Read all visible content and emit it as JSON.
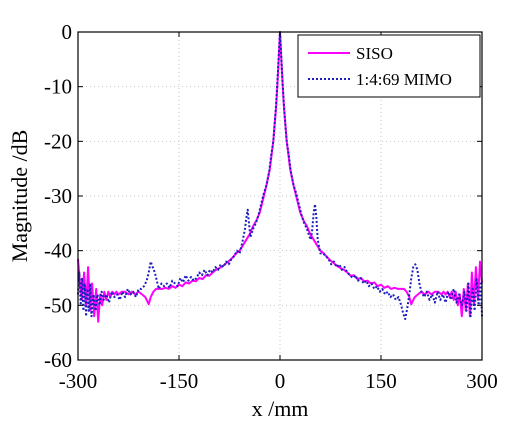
{
  "chart_data": {
    "type": "line",
    "title": "",
    "xlabel": "x /mm",
    "ylabel": "Magnitude /dB",
    "xlim": [
      -300,
      300
    ],
    "ylim": [
      -60,
      0
    ],
    "xticks": [
      -300,
      -150,
      0,
      150,
      300
    ],
    "yticks": [
      0,
      -10,
      -20,
      -30,
      -40,
      -50,
      -60
    ],
    "grid": true,
    "legend_position": "top-right",
    "series": [
      {
        "name": "SISO",
        "color": "#ff00ff",
        "line_style": "solid",
        "points": [
          [
            -300,
            -41.5
          ],
          [
            -297,
            -46
          ],
          [
            -294,
            -49
          ],
          [
            -291,
            -44
          ],
          [
            -288,
            -50
          ],
          [
            -285,
            -43
          ],
          [
            -282,
            -51
          ],
          [
            -279,
            -46
          ],
          [
            -276,
            -52
          ],
          [
            -273,
            -47
          ],
          [
            -270,
            -53
          ],
          [
            -267,
            -48
          ],
          [
            -264,
            -50
          ],
          [
            -261,
            -47.5
          ],
          [
            -258,
            -49
          ],
          [
            -255,
            -47.5
          ],
          [
            -252,
            -48.5
          ],
          [
            -249,
            -47.5
          ],
          [
            -246,
            -48
          ],
          [
            -243,
            -47.5
          ],
          [
            -240,
            -48
          ],
          [
            -235,
            -47.5
          ],
          [
            -230,
            -47.5
          ],
          [
            -225,
            -48
          ],
          [
            -220,
            -47.5
          ],
          [
            -215,
            -48
          ],
          [
            -210,
            -47.5
          ],
          [
            -205,
            -48
          ],
          [
            -200,
            -48.5
          ],
          [
            -195,
            -49.8
          ],
          [
            -192,
            -48.5
          ],
          [
            -188,
            -47.5
          ],
          [
            -184,
            -47
          ],
          [
            -180,
            -47
          ],
          [
            -175,
            -47
          ],
          [
            -170,
            -46.8
          ],
          [
            -165,
            -47
          ],
          [
            -160,
            -46.5
          ],
          [
            -155,
            -46.8
          ],
          [
            -150,
            -46.2
          ],
          [
            -145,
            -46.5
          ],
          [
            -140,
            -45.8
          ],
          [
            -135,
            -46
          ],
          [
            -130,
            -45.5
          ],
          [
            -125,
            -45.6
          ],
          [
            -120,
            -45
          ],
          [
            -115,
            -45.2
          ],
          [
            -110,
            -44.5
          ],
          [
            -105,
            -44.6
          ],
          [
            -100,
            -44
          ],
          [
            -95,
            -43.5
          ],
          [
            -90,
            -43.2
          ],
          [
            -85,
            -42.8
          ],
          [
            -80,
            -42.3
          ],
          [
            -75,
            -41.8
          ],
          [
            -70,
            -41.2
          ],
          [
            -65,
            -40.5
          ],
          [
            -60,
            -40
          ],
          [
            -55,
            -39
          ],
          [
            -50,
            -38
          ],
          [
            -45,
            -37
          ],
          [
            -40,
            -35.5
          ],
          [
            -35,
            -34.5
          ],
          [
            -30,
            -33
          ],
          [
            -25,
            -30.5
          ],
          [
            -20,
            -28
          ],
          [
            -15,
            -25
          ],
          [
            -12,
            -22
          ],
          [
            -10,
            -20
          ],
          [
            -8,
            -17
          ],
          [
            -6,
            -14
          ],
          [
            -4,
            -10
          ],
          [
            -2,
            -5
          ],
          [
            0,
            0
          ],
          [
            2,
            -5
          ],
          [
            4,
            -10
          ],
          [
            6,
            -14
          ],
          [
            8,
            -17
          ],
          [
            10,
            -20
          ],
          [
            12,
            -22
          ],
          [
            15,
            -25
          ],
          [
            20,
            -28
          ],
          [
            25,
            -30.5
          ],
          [
            30,
            -33
          ],
          [
            35,
            -34.5
          ],
          [
            40,
            -35.5
          ],
          [
            45,
            -37
          ],
          [
            50,
            -38
          ],
          [
            55,
            -39
          ],
          [
            60,
            -40
          ],
          [
            65,
            -40.5
          ],
          [
            70,
            -41.2
          ],
          [
            75,
            -41.8
          ],
          [
            80,
            -42.3
          ],
          [
            85,
            -42.8
          ],
          [
            90,
            -43.2
          ],
          [
            95,
            -43.5
          ],
          [
            100,
            -44
          ],
          [
            105,
            -44.6
          ],
          [
            110,
            -44.5
          ],
          [
            115,
            -45.2
          ],
          [
            120,
            -45
          ],
          [
            125,
            -45.6
          ],
          [
            130,
            -45.5
          ],
          [
            135,
            -46
          ],
          [
            140,
            -45.8
          ],
          [
            145,
            -46.5
          ],
          [
            150,
            -46.2
          ],
          [
            155,
            -46.8
          ],
          [
            160,
            -46.5
          ],
          [
            165,
            -47
          ],
          [
            170,
            -46.8
          ],
          [
            175,
            -47
          ],
          [
            180,
            -47
          ],
          [
            184,
            -47
          ],
          [
            188,
            -47.5
          ],
          [
            192,
            -48.5
          ],
          [
            195,
            -49.8
          ],
          [
            200,
            -48.5
          ],
          [
            205,
            -48
          ],
          [
            210,
            -47.5
          ],
          [
            215,
            -48
          ],
          [
            220,
            -47.5
          ],
          [
            225,
            -48
          ],
          [
            230,
            -47.5
          ],
          [
            235,
            -47.5
          ],
          [
            240,
            -48
          ],
          [
            243,
            -47.5
          ],
          [
            246,
            -48
          ],
          [
            249,
            -47.5
          ],
          [
            252,
            -48.5
          ],
          [
            255,
            -47.5
          ],
          [
            258,
            -49
          ],
          [
            261,
            -47.5
          ],
          [
            264,
            -50
          ],
          [
            267,
            -48
          ],
          [
            270,
            -52
          ],
          [
            273,
            -47
          ],
          [
            276,
            -51
          ],
          [
            279,
            -46
          ],
          [
            282,
            -52
          ],
          [
            285,
            -44
          ],
          [
            288,
            -50
          ],
          [
            291,
            -43
          ],
          [
            294,
            -49
          ],
          [
            297,
            -42
          ],
          [
            300,
            -46
          ]
        ]
      },
      {
        "name": "1:4:69 MIMO",
        "color": "#1f1fbf",
        "line_style": "dotted",
        "points": [
          [
            -300,
            -48
          ],
          [
            -298,
            -44
          ],
          [
            -296,
            -50
          ],
          [
            -294,
            -45
          ],
          [
            -292,
            -51
          ],
          [
            -290,
            -46
          ],
          [
            -288,
            -52
          ],
          [
            -286,
            -47
          ],
          [
            -284,
            -51
          ],
          [
            -282,
            -46
          ],
          [
            -280,
            -52
          ],
          [
            -277,
            -48
          ],
          [
            -274,
            -51
          ],
          [
            -271,
            -48
          ],
          [
            -268,
            -50
          ],
          [
            -265,
            -47.5
          ],
          [
            -262,
            -49
          ],
          [
            -258,
            -48
          ],
          [
            -254,
            -49.5
          ],
          [
            -250,
            -47.5
          ],
          [
            -246,
            -48.5
          ],
          [
            -242,
            -48
          ],
          [
            -238,
            -49
          ],
          [
            -234,
            -47.5
          ],
          [
            -230,
            -48.5
          ],
          [
            -226,
            -47
          ],
          [
            -222,
            -48
          ],
          [
            -218,
            -47.5
          ],
          [
            -214,
            -48.5
          ],
          [
            -210,
            -47
          ],
          [
            -206,
            -47
          ],
          [
            -202,
            -46.5
          ],
          [
            -198,
            -45.5
          ],
          [
            -195,
            -44
          ],
          [
            -192,
            -42
          ],
          [
            -189,
            -43
          ],
          [
            -186,
            -44
          ],
          [
            -183,
            -45.5
          ],
          [
            -180,
            -47
          ],
          [
            -176,
            -46
          ],
          [
            -172,
            -46.5
          ],
          [
            -168,
            -46
          ],
          [
            -164,
            -46.8
          ],
          [
            -160,
            -45.5
          ],
          [
            -156,
            -46
          ],
          [
            -152,
            -46.5
          ],
          [
            -148,
            -45
          ],
          [
            -144,
            -45.8
          ],
          [
            -140,
            -44.5
          ],
          [
            -136,
            -45.5
          ],
          [
            -132,
            -44.8
          ],
          [
            -128,
            -45.5
          ],
          [
            -124,
            -45
          ],
          [
            -120,
            -44
          ],
          [
            -116,
            -44.5
          ],
          [
            -112,
            -43.5
          ],
          [
            -108,
            -44.5
          ],
          [
            -104,
            -43.5
          ],
          [
            -100,
            -44
          ],
          [
            -96,
            -43
          ],
          [
            -92,
            -43.5
          ],
          [
            -88,
            -42.5
          ],
          [
            -84,
            -43
          ],
          [
            -80,
            -42
          ],
          [
            -76,
            -42.5
          ],
          [
            -72,
            -41.5
          ],
          [
            -68,
            -41
          ],
          [
            -64,
            -40
          ],
          [
            -60,
            -40.5
          ],
          [
            -56,
            -38.5
          ],
          [
            -52,
            -36
          ],
          [
            -50,
            -34
          ],
          [
            -48,
            -32.5
          ],
          [
            -46,
            -35
          ],
          [
            -44,
            -37.5
          ],
          [
            -40,
            -36
          ],
          [
            -36,
            -35
          ],
          [
            -32,
            -33.5
          ],
          [
            -28,
            -31.5
          ],
          [
            -24,
            -29.5
          ],
          [
            -20,
            -28
          ],
          [
            -16,
            -25.5
          ],
          [
            -13,
            -22.5
          ],
          [
            -10,
            -20
          ],
          [
            -8,
            -17
          ],
          [
            -6,
            -13.5
          ],
          [
            -4,
            -9.5
          ],
          [
            -2,
            -4.5
          ],
          [
            0,
            0
          ],
          [
            2,
            -4.5
          ],
          [
            4,
            -9.5
          ],
          [
            6,
            -13.5
          ],
          [
            8,
            -17
          ],
          [
            10,
            -20
          ],
          [
            13,
            -22.5
          ],
          [
            16,
            -25.5
          ],
          [
            20,
            -28
          ],
          [
            24,
            -29.5
          ],
          [
            28,
            -31.5
          ],
          [
            32,
            -33.5
          ],
          [
            36,
            -35
          ],
          [
            40,
            -36
          ],
          [
            44,
            -37.5
          ],
          [
            46,
            -38
          ],
          [
            48,
            -36
          ],
          [
            50,
            -33
          ],
          [
            52,
            -31.5
          ],
          [
            54,
            -34
          ],
          [
            56,
            -38
          ],
          [
            60,
            -40.5
          ],
          [
            64,
            -40.5
          ],
          [
            68,
            -41
          ],
          [
            72,
            -41.5
          ],
          [
            76,
            -42.5
          ],
          [
            80,
            -42
          ],
          [
            84,
            -43
          ],
          [
            88,
            -42.5
          ],
          [
            92,
            -43.5
          ],
          [
            96,
            -43
          ],
          [
            100,
            -44
          ],
          [
            104,
            -44.5
          ],
          [
            108,
            -45
          ],
          [
            112,
            -44.5
          ],
          [
            116,
            -45.5
          ],
          [
            120,
            -45
          ],
          [
            124,
            -46
          ],
          [
            128,
            -45.5
          ],
          [
            132,
            -46.5
          ],
          [
            136,
            -46
          ],
          [
            140,
            -47
          ],
          [
            144,
            -46.5
          ],
          [
            148,
            -47.5
          ],
          [
            152,
            -47
          ],
          [
            156,
            -48
          ],
          [
            160,
            -47.5
          ],
          [
            164,
            -48.5
          ],
          [
            168,
            -48
          ],
          [
            172,
            -49
          ],
          [
            176,
            -48.5
          ],
          [
            180,
            -50
          ],
          [
            183,
            -51.5
          ],
          [
            186,
            -52.5
          ],
          [
            189,
            -50.5
          ],
          [
            192,
            -48
          ],
          [
            195,
            -45
          ],
          [
            198,
            -43
          ],
          [
            201,
            -42.5
          ],
          [
            204,
            -43.5
          ],
          [
            207,
            -46
          ],
          [
            210,
            -47.5
          ],
          [
            214,
            -48.5
          ],
          [
            218,
            -47.5
          ],
          [
            222,
            -49
          ],
          [
            226,
            -48
          ],
          [
            230,
            -49.5
          ],
          [
            234,
            -47.5
          ],
          [
            238,
            -49
          ],
          [
            242,
            -48
          ],
          [
            246,
            -49.5
          ],
          [
            250,
            -47.5
          ],
          [
            254,
            -49
          ],
          [
            258,
            -47
          ],
          [
            262,
            -49.5
          ],
          [
            266,
            -48
          ],
          [
            270,
            -50
          ],
          [
            274,
            -47.5
          ],
          [
            277,
            -51
          ],
          [
            280,
            -46
          ],
          [
            283,
            -52
          ],
          [
            286,
            -47
          ],
          [
            289,
            -51
          ],
          [
            292,
            -45
          ],
          [
            295,
            -50
          ],
          [
            298,
            -46
          ],
          [
            300,
            -52
          ]
        ]
      }
    ]
  }
}
